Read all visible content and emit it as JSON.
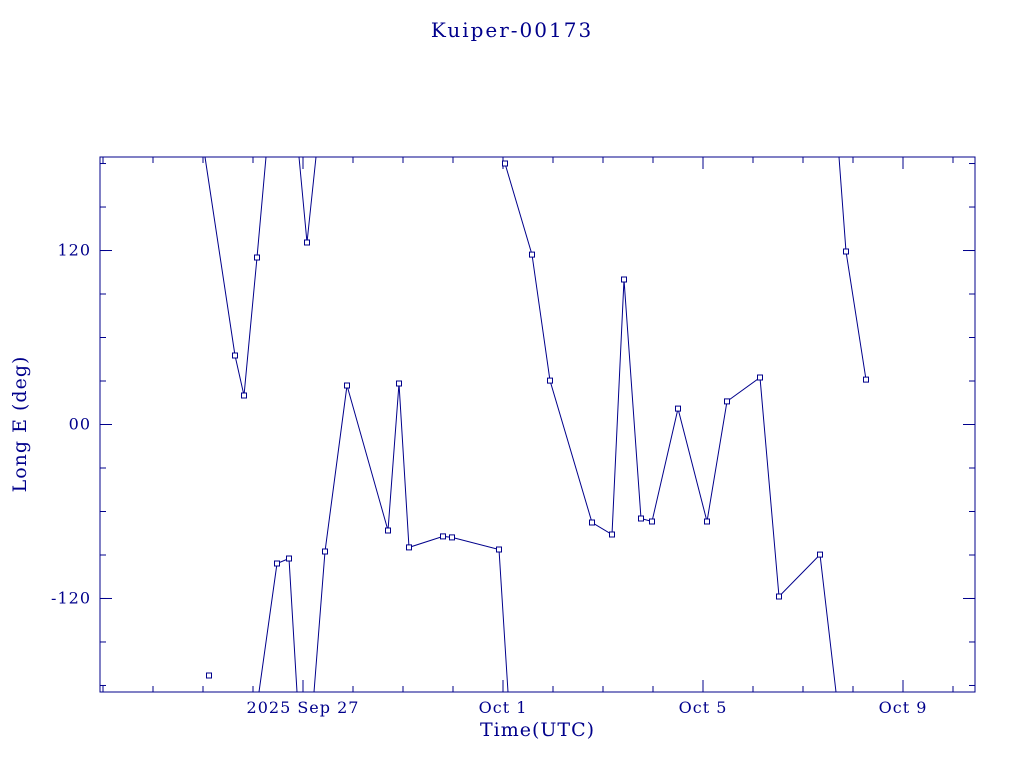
{
  "page": {
    "background": "#ffffff"
  },
  "chart_data": {
    "type": "line",
    "title": "Kuiper-00173",
    "xlabel": "Time(UTC)",
    "ylabel": "Long E (deg)",
    "colors": {
      "ink": "#00008b",
      "background": "#ffffff"
    },
    "x_unit": "days relative to 2025 Sep 27 00:00 UTC",
    "y_unit": "degrees",
    "xlim": [
      -4.06,
      13.44
    ],
    "ylim": [
      -184.5,
      184.5
    ],
    "grid": false,
    "legend": "none",
    "marker_shape": "open-square",
    "x_ticks": [
      {
        "value": 0,
        "label": "2025 Sep 27"
      },
      {
        "value": 4,
        "label": "Oct 1"
      },
      {
        "value": 8,
        "label": "Oct 5"
      },
      {
        "value": 12,
        "label": "Oct 9"
      }
    ],
    "y_ticks": [
      {
        "value": 120,
        "label": "120"
      },
      {
        "value": 0,
        "label": "00"
      },
      {
        "value": -120,
        "label": "-120"
      }
    ],
    "x_minor_step": 1,
    "y_minor_step": 30,
    "point_format": "[day, longitude_deg, is_data_marker]",
    "segments": [
      {
        "name": "wrap-segment-1",
        "points": [
          [
            -1.96,
            184.5,
            0
          ],
          [
            -1.36,
            47.6,
            1
          ],
          [
            -1.18,
            20.0,
            1
          ],
          [
            -0.92,
            115.2,
            1
          ],
          [
            -0.74,
            184.5,
            0
          ]
        ]
      },
      {
        "name": "wrap-segment-2",
        "points": [
          [
            -0.08,
            184.5,
            0
          ],
          [
            0.08,
            125.5,
            1
          ],
          [
            0.26,
            184.5,
            0
          ]
        ]
      },
      {
        "name": "isolated-point",
        "points": [
          [
            -1.88,
            -173.1,
            1
          ]
        ]
      },
      {
        "name": "wrap-segment-3",
        "points": [
          [
            -0.88,
            -184.5,
            0
          ],
          [
            -0.52,
            -95.9,
            1
          ],
          [
            -0.28,
            -92.4,
            1
          ],
          [
            -0.12,
            -184.5,
            0
          ]
        ]
      },
      {
        "name": "wrap-segment-4",
        "points": [
          [
            0.22,
            -184.5,
            0
          ],
          [
            0.44,
            -87.6,
            1
          ],
          [
            0.88,
            26.9,
            1
          ],
          [
            1.7,
            -73.1,
            1
          ],
          [
            1.92,
            28.3,
            1
          ],
          [
            2.12,
            -84.8,
            1
          ],
          [
            2.8,
            -77.2,
            1
          ],
          [
            2.98,
            -77.9,
            1
          ],
          [
            3.92,
            -86.2,
            1
          ],
          [
            4.1,
            -184.5,
            0
          ]
        ]
      },
      {
        "name": "wrap-segment-5",
        "points": [
          [
            4.04,
            180.0,
            1
          ],
          [
            4.58,
            117.2,
            1
          ],
          [
            4.94,
            30.3,
            1
          ],
          [
            5.78,
            -67.6,
            1
          ],
          [
            6.18,
            -75.9,
            1
          ],
          [
            6.42,
            100.0,
            1
          ],
          [
            6.76,
            -64.8,
            1
          ],
          [
            6.98,
            -66.9,
            1
          ],
          [
            7.5,
            11.0,
            1
          ],
          [
            8.08,
            -66.9,
            1
          ],
          [
            8.48,
            15.9,
            1
          ],
          [
            9.14,
            32.4,
            1
          ],
          [
            9.52,
            -118.6,
            1
          ],
          [
            10.34,
            -89.7,
            1
          ],
          [
            10.66,
            -184.5,
            0
          ]
        ]
      },
      {
        "name": "wrap-segment-6",
        "points": [
          [
            10.72,
            184.5,
            0
          ],
          [
            10.86,
            119.3,
            1
          ],
          [
            11.26,
            31.0,
            1
          ]
        ]
      }
    ]
  }
}
